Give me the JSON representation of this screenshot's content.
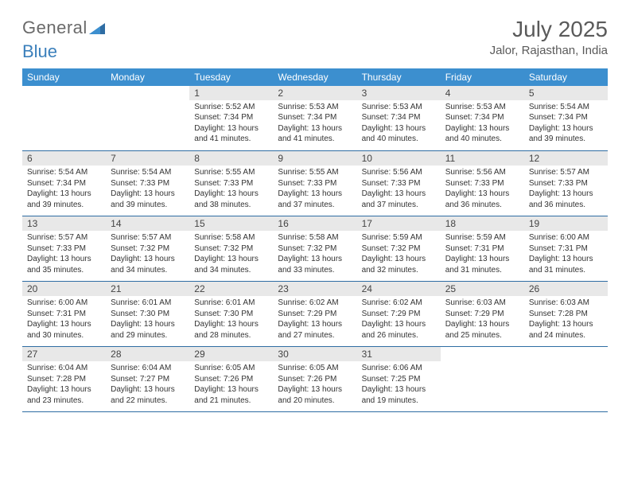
{
  "logo": {
    "part1": "General",
    "part2": "Blue"
  },
  "title": "July 2025",
  "location": "Jalor, Rajasthan, India",
  "colors": {
    "header_bg": "#3c8fcf",
    "header_fg": "#ffffff",
    "row_border": "#2f6da3",
    "daynum_bg": "#e8e8e8",
    "text": "#333333",
    "title_color": "#5a5a5a",
    "logo_accent": "#3a7fbb"
  },
  "day_headers": [
    "Sunday",
    "Monday",
    "Tuesday",
    "Wednesday",
    "Thursday",
    "Friday",
    "Saturday"
  ],
  "weeks": [
    [
      null,
      null,
      {
        "n": "1",
        "sr": "5:52 AM",
        "ss": "7:34 PM",
        "dl": "13 hours and 41 minutes."
      },
      {
        "n": "2",
        "sr": "5:53 AM",
        "ss": "7:34 PM",
        "dl": "13 hours and 41 minutes."
      },
      {
        "n": "3",
        "sr": "5:53 AM",
        "ss": "7:34 PM",
        "dl": "13 hours and 40 minutes."
      },
      {
        "n": "4",
        "sr": "5:53 AM",
        "ss": "7:34 PM",
        "dl": "13 hours and 40 minutes."
      },
      {
        "n": "5",
        "sr": "5:54 AM",
        "ss": "7:34 PM",
        "dl": "13 hours and 39 minutes."
      }
    ],
    [
      {
        "n": "6",
        "sr": "5:54 AM",
        "ss": "7:34 PM",
        "dl": "13 hours and 39 minutes."
      },
      {
        "n": "7",
        "sr": "5:54 AM",
        "ss": "7:33 PM",
        "dl": "13 hours and 39 minutes."
      },
      {
        "n": "8",
        "sr": "5:55 AM",
        "ss": "7:33 PM",
        "dl": "13 hours and 38 minutes."
      },
      {
        "n": "9",
        "sr": "5:55 AM",
        "ss": "7:33 PM",
        "dl": "13 hours and 37 minutes."
      },
      {
        "n": "10",
        "sr": "5:56 AM",
        "ss": "7:33 PM",
        "dl": "13 hours and 37 minutes."
      },
      {
        "n": "11",
        "sr": "5:56 AM",
        "ss": "7:33 PM",
        "dl": "13 hours and 36 minutes."
      },
      {
        "n": "12",
        "sr": "5:57 AM",
        "ss": "7:33 PM",
        "dl": "13 hours and 36 minutes."
      }
    ],
    [
      {
        "n": "13",
        "sr": "5:57 AM",
        "ss": "7:33 PM",
        "dl": "13 hours and 35 minutes."
      },
      {
        "n": "14",
        "sr": "5:57 AM",
        "ss": "7:32 PM",
        "dl": "13 hours and 34 minutes."
      },
      {
        "n": "15",
        "sr": "5:58 AM",
        "ss": "7:32 PM",
        "dl": "13 hours and 34 minutes."
      },
      {
        "n": "16",
        "sr": "5:58 AM",
        "ss": "7:32 PM",
        "dl": "13 hours and 33 minutes."
      },
      {
        "n": "17",
        "sr": "5:59 AM",
        "ss": "7:32 PM",
        "dl": "13 hours and 32 minutes."
      },
      {
        "n": "18",
        "sr": "5:59 AM",
        "ss": "7:31 PM",
        "dl": "13 hours and 31 minutes."
      },
      {
        "n": "19",
        "sr": "6:00 AM",
        "ss": "7:31 PM",
        "dl": "13 hours and 31 minutes."
      }
    ],
    [
      {
        "n": "20",
        "sr": "6:00 AM",
        "ss": "7:31 PM",
        "dl": "13 hours and 30 minutes."
      },
      {
        "n": "21",
        "sr": "6:01 AM",
        "ss": "7:30 PM",
        "dl": "13 hours and 29 minutes."
      },
      {
        "n": "22",
        "sr": "6:01 AM",
        "ss": "7:30 PM",
        "dl": "13 hours and 28 minutes."
      },
      {
        "n": "23",
        "sr": "6:02 AM",
        "ss": "7:29 PM",
        "dl": "13 hours and 27 minutes."
      },
      {
        "n": "24",
        "sr": "6:02 AM",
        "ss": "7:29 PM",
        "dl": "13 hours and 26 minutes."
      },
      {
        "n": "25",
        "sr": "6:03 AM",
        "ss": "7:29 PM",
        "dl": "13 hours and 25 minutes."
      },
      {
        "n": "26",
        "sr": "6:03 AM",
        "ss": "7:28 PM",
        "dl": "13 hours and 24 minutes."
      }
    ],
    [
      {
        "n": "27",
        "sr": "6:04 AM",
        "ss": "7:28 PM",
        "dl": "13 hours and 23 minutes."
      },
      {
        "n": "28",
        "sr": "6:04 AM",
        "ss": "7:27 PM",
        "dl": "13 hours and 22 minutes."
      },
      {
        "n": "29",
        "sr": "6:05 AM",
        "ss": "7:26 PM",
        "dl": "13 hours and 21 minutes."
      },
      {
        "n": "30",
        "sr": "6:05 AM",
        "ss": "7:26 PM",
        "dl": "13 hours and 20 minutes."
      },
      {
        "n": "31",
        "sr": "6:06 AM",
        "ss": "7:25 PM",
        "dl": "13 hours and 19 minutes."
      },
      null,
      null
    ]
  ],
  "labels": {
    "sunrise": "Sunrise:",
    "sunset": "Sunset:",
    "daylight": "Daylight:"
  }
}
